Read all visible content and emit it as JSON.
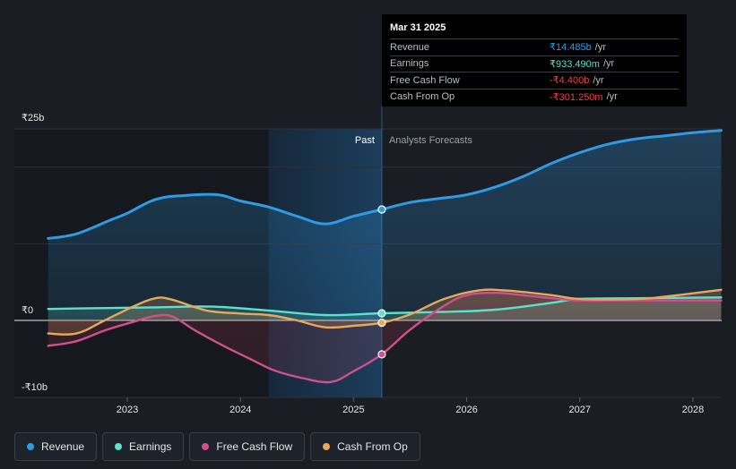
{
  "colors": {
    "background": "#1a1d24",
    "revenue": "#2f9be4",
    "earnings": "#5ee0cf",
    "fcf": "#d14f8c",
    "cfo": "#e8a85c",
    "past_band": "#1b3a55",
    "negative": "#e8424b"
  },
  "tooltip": {
    "date": "Mar 31 2025",
    "rows": [
      {
        "label": "Revenue",
        "value": "₹14.485b",
        "unit": "/yr",
        "color": "#2f9be4"
      },
      {
        "label": "Earnings",
        "value": "₹933.490m",
        "unit": "/yr",
        "color": "#5ee0cf"
      },
      {
        "label": "Free Cash Flow",
        "value": "-₹4.400b",
        "unit": "/yr",
        "color": "#e8424b"
      },
      {
        "label": "Cash From Op",
        "value": "-₹301.250m",
        "unit": "/yr",
        "color": "#e8424b"
      }
    ]
  },
  "legend": [
    {
      "label": "Revenue",
      "icon": "revenue-dot-icon",
      "color": "#2f9be4"
    },
    {
      "label": "Earnings",
      "icon": "earnings-dot-icon",
      "color": "#5ee0cf"
    },
    {
      "label": "Free Cash Flow",
      "icon": "fcf-dot-icon",
      "color": "#d14f8c"
    },
    {
      "label": "Cash From Op",
      "icon": "cfo-dot-icon",
      "color": "#e8a85c"
    }
  ],
  "chart_data": {
    "type": "line",
    "title": "",
    "currency_unit": "₹ billions",
    "ylim": [
      -10,
      25
    ],
    "xlim": [
      2022.3,
      2028.25
    ],
    "y_tick_labels": [
      {
        "value": 25,
        "label": "₹25b"
      },
      {
        "value": 0,
        "label": "₹0"
      },
      {
        "value": -10,
        "label": "-₹10b"
      }
    ],
    "x_tick_labels": [
      {
        "value": 2023,
        "label": "2023"
      },
      {
        "value": 2024,
        "label": "2024"
      },
      {
        "value": 2025,
        "label": "2025"
      },
      {
        "value": 2026,
        "label": "2026"
      },
      {
        "value": 2027,
        "label": "2027"
      },
      {
        "value": 2028,
        "label": "2028"
      }
    ],
    "divider_x": 2025.25,
    "highlight_start_x": 2024.25,
    "past_label": "Past",
    "forecast_label": "Analysts Forecasts",
    "grid": true,
    "series": [
      {
        "name": "Revenue",
        "color": "#2f9be4",
        "fill": true,
        "points": [
          [
            2022.3,
            10.7
          ],
          [
            2022.55,
            11.3
          ],
          [
            2022.85,
            13.1
          ],
          [
            2023.0,
            14.0
          ],
          [
            2023.25,
            15.8
          ],
          [
            2023.5,
            16.3
          ],
          [
            2023.8,
            16.4
          ],
          [
            2024.0,
            15.6
          ],
          [
            2024.25,
            14.8
          ],
          [
            2024.5,
            13.6
          ],
          [
            2024.75,
            12.6
          ],
          [
            2025.0,
            13.6
          ],
          [
            2025.25,
            14.485
          ],
          [
            2025.5,
            15.4
          ],
          [
            2025.75,
            15.9
          ],
          [
            2026.0,
            16.4
          ],
          [
            2026.25,
            17.4
          ],
          [
            2026.5,
            18.8
          ],
          [
            2026.75,
            20.5
          ],
          [
            2027.0,
            21.9
          ],
          [
            2027.25,
            23.0
          ],
          [
            2027.5,
            23.7
          ],
          [
            2027.75,
            24.1
          ],
          [
            2028.0,
            24.5
          ],
          [
            2028.25,
            24.8
          ]
        ]
      },
      {
        "name": "Earnings",
        "color": "#5ee0cf",
        "fill": true,
        "points": [
          [
            2022.3,
            1.5
          ],
          [
            2022.75,
            1.6
          ],
          [
            2023.25,
            1.7
          ],
          [
            2023.75,
            1.8
          ],
          [
            2024.25,
            1.3
          ],
          [
            2024.75,
            0.7
          ],
          [
            2025.25,
            0.933
          ],
          [
            2025.75,
            1.1
          ],
          [
            2026.25,
            1.4
          ],
          [
            2026.75,
            2.3
          ],
          [
            2027.0,
            2.8
          ],
          [
            2027.5,
            2.9
          ],
          [
            2028.25,
            3.0
          ]
        ]
      },
      {
        "name": "Free Cash Flow",
        "color": "#d14f8c",
        "fill": true,
        "points": [
          [
            2022.3,
            -3.3
          ],
          [
            2022.55,
            -2.7
          ],
          [
            2022.8,
            -1.3
          ],
          [
            2023.05,
            -0.2
          ],
          [
            2023.25,
            0.6
          ],
          [
            2023.4,
            0.5
          ],
          [
            2023.6,
            -1.3
          ],
          [
            2023.85,
            -3.3
          ],
          [
            2024.1,
            -5.1
          ],
          [
            2024.3,
            -6.5
          ],
          [
            2024.55,
            -7.5
          ],
          [
            2024.8,
            -8.0
          ],
          [
            2025.0,
            -6.6
          ],
          [
            2025.25,
            -4.4
          ],
          [
            2025.5,
            -1.2
          ],
          [
            2025.8,
            1.9
          ],
          [
            2026.0,
            3.3
          ],
          [
            2026.25,
            3.6
          ],
          [
            2026.5,
            3.3
          ],
          [
            2026.75,
            2.9
          ],
          [
            2027.0,
            2.6
          ],
          [
            2027.5,
            2.6
          ],
          [
            2028.25,
            2.6
          ]
        ]
      },
      {
        "name": "Cash From Op",
        "color": "#e8a85c",
        "fill": true,
        "points": [
          [
            2022.3,
            -1.7
          ],
          [
            2022.55,
            -1.7
          ],
          [
            2022.8,
            0.0
          ],
          [
            2023.05,
            1.8
          ],
          [
            2023.25,
            2.9
          ],
          [
            2023.4,
            2.7
          ],
          [
            2023.7,
            1.3
          ],
          [
            2024.0,
            0.9
          ],
          [
            2024.25,
            0.7
          ],
          [
            2024.5,
            0.0
          ],
          [
            2024.75,
            -0.9
          ],
          [
            2025.0,
            -0.7
          ],
          [
            2025.25,
            -0.3
          ],
          [
            2025.5,
            0.8
          ],
          [
            2025.8,
            2.8
          ],
          [
            2026.1,
            3.9
          ],
          [
            2026.35,
            3.9
          ],
          [
            2026.75,
            3.3
          ],
          [
            2027.0,
            2.8
          ],
          [
            2027.5,
            2.8
          ],
          [
            2027.75,
            3.1
          ],
          [
            2028.25,
            4.0
          ]
        ]
      }
    ],
    "markers_at_x": 2025.25
  }
}
